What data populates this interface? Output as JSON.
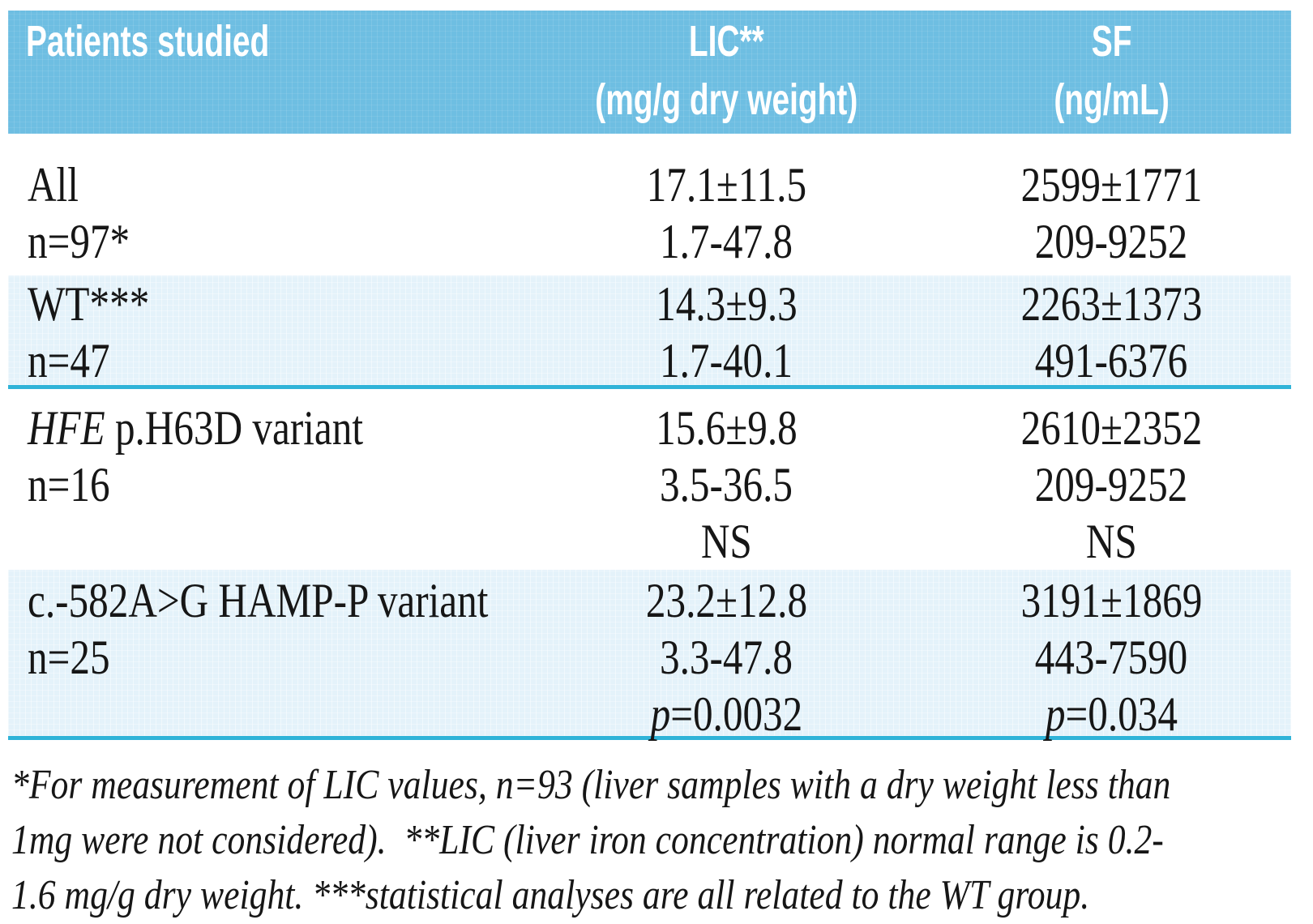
{
  "colors": {
    "header_bg": "#6EBEE2",
    "header_text": "#FFFFFF",
    "row_alt_bg": "#E4F2FA",
    "separator": "#2FB3D8",
    "body_text": "#161616"
  },
  "table": {
    "header": {
      "col1": "Patients studied",
      "col2": [
        "LIC**",
        "(mg/g dry weight)"
      ],
      "col3": [
        "SF",
        "(ng/mL)"
      ]
    },
    "rows": [
      {
        "label_italic": "",
        "label": "All",
        "n": "n=97*",
        "lic": {
          "mean": "17.1±11.5",
          "range": "1.7-47.8",
          "stat_italic": "",
          "stat": ""
        },
        "sf": {
          "mean": "2599±1771",
          "range": "209-9252",
          "stat_italic": "",
          "stat": ""
        }
      },
      {
        "label_italic": "",
        "label": "WT***",
        "n": "n=47",
        "lic": {
          "mean": "14.3±9.3",
          "range": "1.7-40.1",
          "stat_italic": "",
          "stat": ""
        },
        "sf": {
          "mean": "2263±1373",
          "range": "491-6376",
          "stat_italic": "",
          "stat": ""
        }
      },
      {
        "label_italic": "HFE",
        "label": " p.H63D variant",
        "n": "n=16",
        "lic": {
          "mean": "15.6±9.8",
          "range": "3.5-36.5",
          "stat_italic": "",
          "stat": "NS"
        },
        "sf": {
          "mean": "2610±2352",
          "range": "209-9252",
          "stat_italic": "",
          "stat": "NS"
        }
      },
      {
        "label_italic": "",
        "label": "c.-582A>G HAMP-P variant",
        "n": "n=25",
        "lic": {
          "mean": "23.2±12.8",
          "range": "3.3-47.8",
          "stat_italic": "p",
          "stat": "=0.0032"
        },
        "sf": {
          "mean": "3191±1869",
          "range": "443-7590",
          "stat_italic": "p",
          "stat": "=0.034"
        }
      }
    ]
  },
  "footnote": {
    "lines": [
      "*For measurement of LIC values, n=93 (liver samples with a dry weight less than",
      "1mg were not considered).  **LIC (liver iron concentration) normal range is 0.2-",
      "1.6 mg/g dry weight. ***statistical analyses are all related to the WT group."
    ]
  }
}
